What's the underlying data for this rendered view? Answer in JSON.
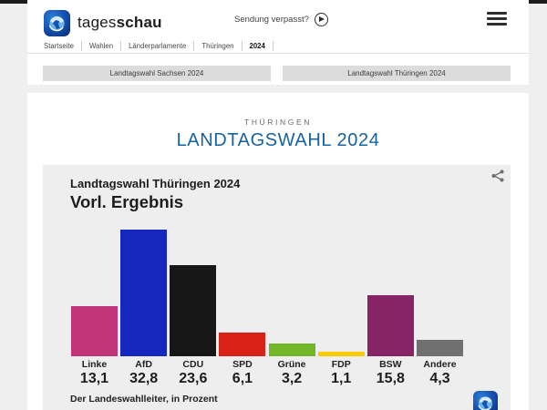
{
  "header": {
    "brand": {
      "name_regular": "tages",
      "name_bold": "schau"
    },
    "missed_broadcast_label": "Sendung verpasst?",
    "breadcrumb": [
      "Startseite",
      "Wahlen",
      "Länderparlamente",
      "Thüringen",
      "2024"
    ],
    "quick_links": [
      "Landtagswahl Sachsen 2024",
      "Landtagswahl Thüringen 2024"
    ]
  },
  "page": {
    "kicker": "THÜRINGEN",
    "title": "LANDTAGSWAHL 2024",
    "title_color": "#16639f"
  },
  "chart_data": {
    "type": "bar",
    "title": "Landtagswahl Thüringen 2024",
    "subtitle": "Vorl. Ergebnis",
    "categories": [
      "Linke",
      "AfD",
      "CDU",
      "SPD",
      "Grüne",
      "FDP",
      "BSW",
      "Andere"
    ],
    "values": [
      13.1,
      32.8,
      23.6,
      6.1,
      3.2,
      1.1,
      15.8,
      4.3
    ],
    "values_display": [
      "13,1",
      "32,8",
      "23,6",
      "6,1",
      "3,2",
      "1,1",
      "15,8",
      "4,3"
    ],
    "colors": [
      "#c13578",
      "#1527bd",
      "#171717",
      "#d92118",
      "#72b62a",
      "#fdcc00",
      "#862465",
      "#707070"
    ],
    "unit": "Prozent",
    "source_note": "Der Landeswahlleiter, in Prozent",
    "ylim": [
      0,
      35
    ],
    "grid": false,
    "legend": "none"
  }
}
